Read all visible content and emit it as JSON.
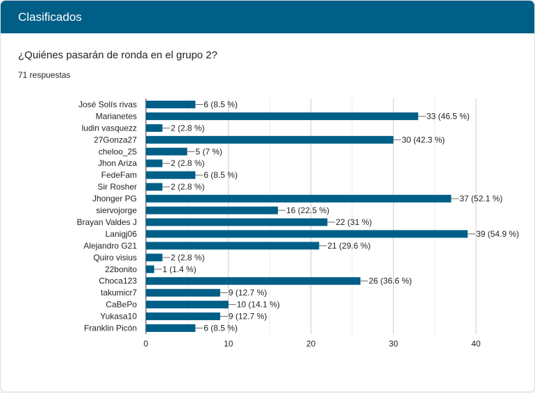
{
  "header": {
    "title": "Clasificados"
  },
  "question": {
    "text": "¿Quiénes pasarán de ronda en el grupo 2?",
    "responses": "71 respuestas"
  },
  "colors": {
    "header": "#005f87",
    "bar": "#005f87"
  },
  "chart_data": {
    "type": "bar",
    "orientation": "horizontal",
    "categories": [
      "José Solís rivas",
      "Marianetes",
      "ludin vasquezz",
      "27Gonza27",
      "cheloo_25",
      "Jhon Ariza",
      "FedeFam",
      "Sir Rosher",
      "Jhonger PG",
      "siervojorge",
      "Brayan Valdes J",
      "Lanigj06",
      "Alejandro G21",
      "Quiro visius",
      "22bonito",
      "Choca123",
      "takumicr7",
      "CaBePo",
      "Yukasa10",
      "Franklin Picón"
    ],
    "values": [
      6,
      33,
      2,
      30,
      5,
      2,
      6,
      2,
      37,
      16,
      22,
      39,
      21,
      2,
      1,
      26,
      9,
      10,
      9,
      6
    ],
    "data_labels": [
      "6 (8.5 %)",
      "33 (46.5 %)",
      "2 (2.8 %)",
      "30 (42.3 %)",
      "5 (7 %)",
      "2 (2.8 %)",
      "6 (8.5 %)",
      "2 (2.8 %)",
      "37 (52.1 %)",
      "16 (22.5 %)",
      "22 (31 %)",
      "39 (54.9 %)",
      "21 (29.6 %)",
      "2 (2.8 %)",
      "1 (1.4 %)",
      "26 (36.6 %)",
      "9 (12.7 %)",
      "10 (14.1 %)",
      "9 (12.7 %)",
      "6 (8.5 %)"
    ],
    "xlim": [
      0,
      40
    ],
    "xticks": [
      "0",
      "10",
      "20",
      "30",
      "40"
    ],
    "grid": true,
    "legend": "none"
  }
}
